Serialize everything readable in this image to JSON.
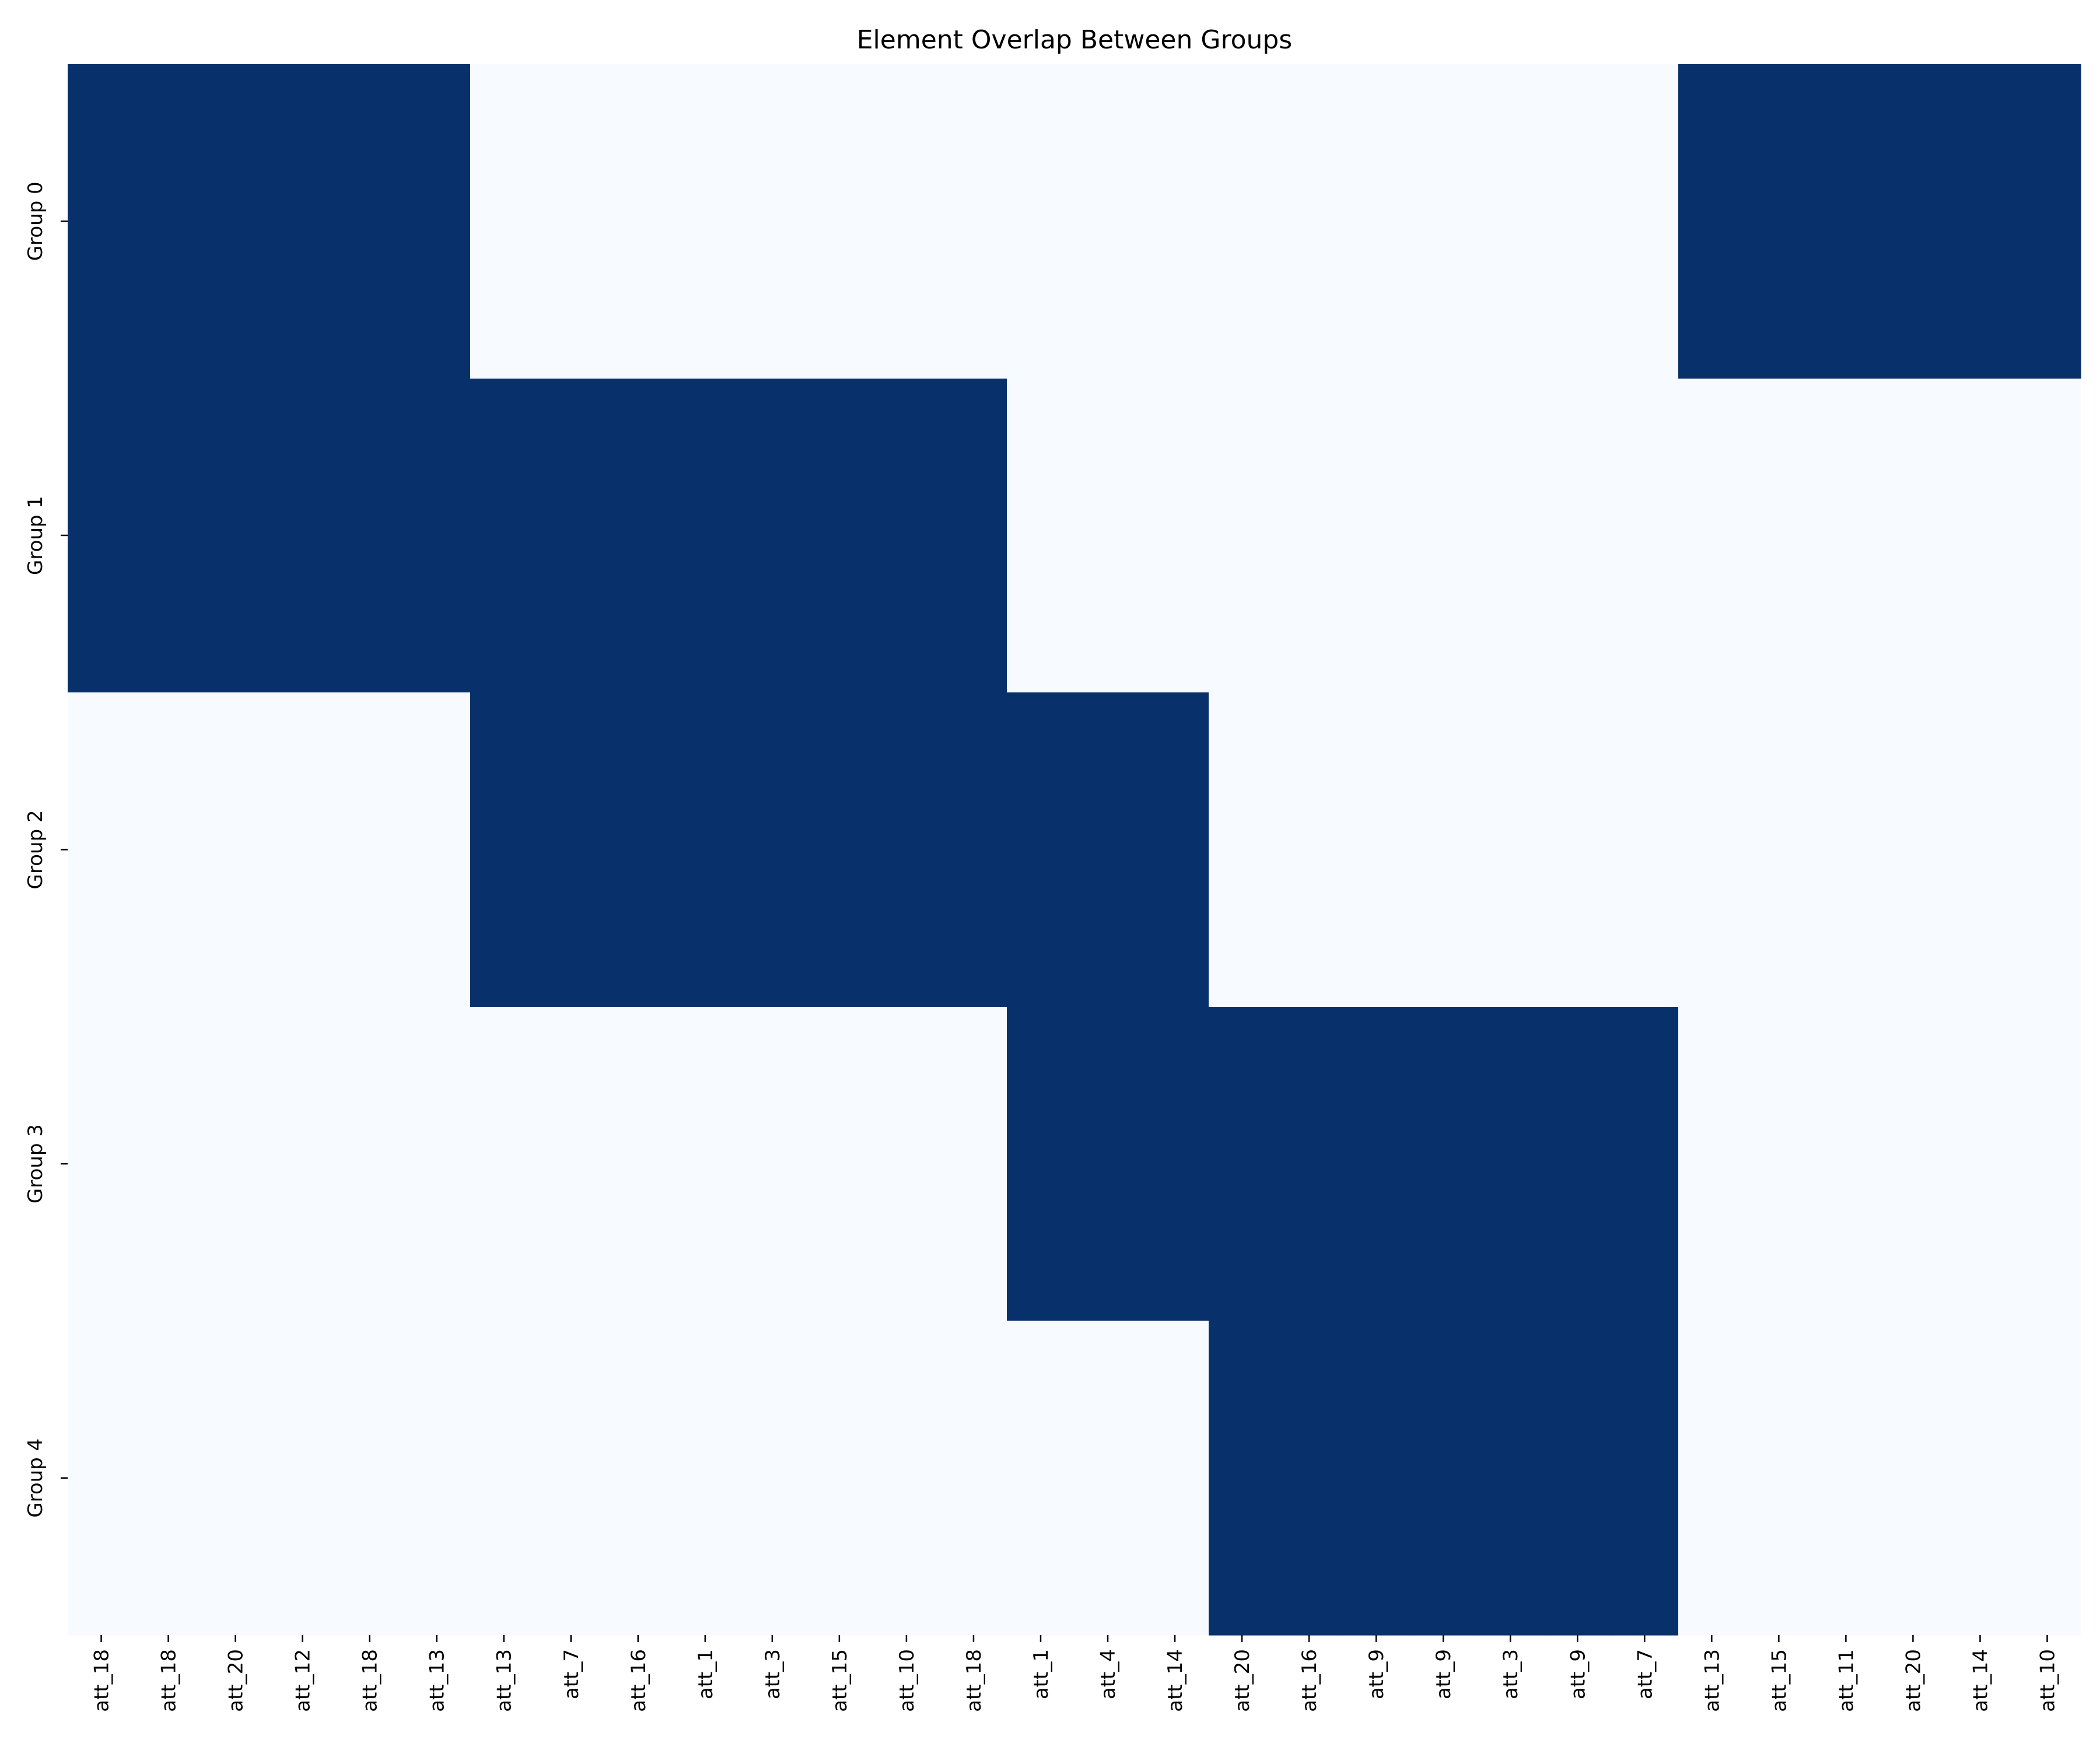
{
  "chart_data": {
    "type": "heatmap",
    "title": "Element Overlap Between Groups",
    "xlabel": "",
    "ylabel": "",
    "y_categories": [
      "Group 0",
      "Group 1",
      "Group 2",
      "Group 3",
      "Group 4"
    ],
    "x_categories": [
      "att_18",
      "att_18",
      "att_20",
      "att_12",
      "att_18",
      "att_13",
      "att_13",
      "att_7",
      "att_16",
      "att_1",
      "att_3",
      "att_15",
      "att_10",
      "att_18",
      "att_1",
      "att_4",
      "att_14",
      "att_20",
      "att_16",
      "att_9",
      "att_9",
      "att_3",
      "att_9",
      "att_7",
      "att_13",
      "att_15",
      "att_11",
      "att_20",
      "att_14",
      "att_10"
    ],
    "values": [
      [
        1,
        1,
        1,
        1,
        1,
        1,
        0,
        0,
        0,
        0,
        0,
        0,
        0,
        0,
        0,
        0,
        0,
        0,
        0,
        0,
        0,
        0,
        0,
        0,
        1,
        1,
        1,
        1,
        1,
        1
      ],
      [
        1,
        1,
        1,
        1,
        1,
        1,
        1,
        1,
        1,
        1,
        1,
        1,
        1,
        1,
        0,
        0,
        0,
        0,
        0,
        0,
        0,
        0,
        0,
        0,
        0,
        0,
        0,
        0,
        0,
        0
      ],
      [
        0,
        0,
        0,
        0,
        0,
        0,
        1,
        1,
        1,
        1,
        1,
        1,
        1,
        1,
        1,
        1,
        1,
        0,
        0,
        0,
        0,
        0,
        0,
        0,
        0,
        0,
        0,
        0,
        0,
        0
      ],
      [
        0,
        0,
        0,
        0,
        0,
        0,
        0,
        0,
        0,
        0,
        0,
        0,
        0,
        0,
        1,
        1,
        1,
        1,
        1,
        1,
        1,
        1,
        1,
        1,
        0,
        0,
        0,
        0,
        0,
        0
      ],
      [
        0,
        0,
        0,
        0,
        0,
        0,
        0,
        0,
        0,
        0,
        0,
        0,
        0,
        0,
        0,
        0,
        0,
        1,
        1,
        1,
        1,
        1,
        1,
        1,
        0,
        0,
        0,
        0,
        0,
        0
      ]
    ],
    "value_range": [
      0,
      1
    ],
    "colorbar": false,
    "colors": {
      "low": "#f7fbff",
      "high": "#08306b"
    }
  }
}
